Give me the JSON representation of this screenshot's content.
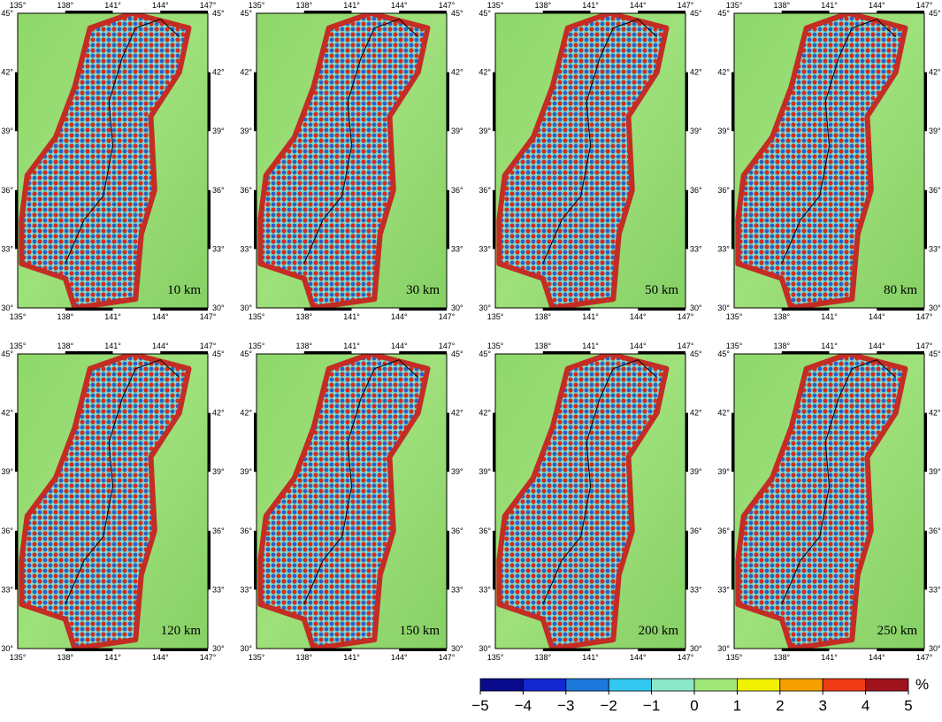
{
  "panels": [
    {
      "label": "10 km"
    },
    {
      "label": "30 km"
    },
    {
      "label": "50 km"
    },
    {
      "label": "80 km"
    },
    {
      "label": "120 km"
    },
    {
      "label": "150 km"
    },
    {
      "label": "200 km"
    },
    {
      "label": "250 km"
    }
  ],
  "lon_ticks": [
    "135°",
    "138°",
    "141°",
    "144°",
    "147°"
  ],
  "lat_ticks": [
    "30°",
    "33°",
    "36°",
    "39°",
    "42°",
    "45°"
  ],
  "colorbar": {
    "unit": "%",
    "ticks": [
      "−5",
      "−4",
      "−3",
      "−2",
      "−1",
      "0",
      "1",
      "2",
      "3",
      "4",
      "5"
    ],
    "colors": [
      "#0a0a8c",
      "#1428d2",
      "#1e78dc",
      "#32c8f0",
      "#8ce6c8",
      "#a0e678",
      "#f0f000",
      "#f5a000",
      "#f03c14",
      "#a0141e"
    ]
  }
}
